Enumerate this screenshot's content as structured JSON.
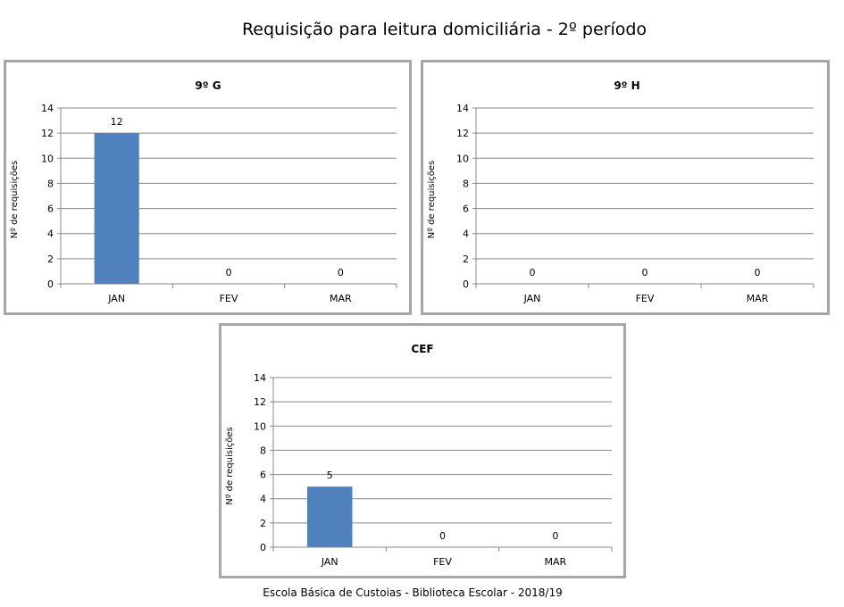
{
  "title": "Requisição para leitura domiciliária - 2º período",
  "footer": "Escola Básica de Custoias - Biblioteca Escolar  - 2018/19",
  "colors": {
    "bar": "#4f81bd",
    "grid": "#888888",
    "panel_border": "#a6a6a6"
  },
  "chart_data": [
    {
      "type": "bar",
      "title": "9º G",
      "ylabel": "Nº de requisições",
      "xlabel": "",
      "categories": [
        "JAN",
        "FEV",
        "MAR"
      ],
      "values": [
        12,
        0,
        0
      ],
      "ylim": [
        0,
        14
      ],
      "yticks": [
        0,
        2,
        4,
        6,
        8,
        10,
        12,
        14
      ],
      "grid": true,
      "legend": "none"
    },
    {
      "type": "bar",
      "title": "9º H",
      "ylabel": "Nº de requisições",
      "xlabel": "",
      "categories": [
        "JAN",
        "FEV",
        "MAR"
      ],
      "values": [
        0,
        0,
        0
      ],
      "ylim": [
        0,
        14
      ],
      "yticks": [
        0,
        2,
        4,
        6,
        8,
        10,
        12,
        14
      ],
      "grid": true,
      "legend": "none"
    },
    {
      "type": "bar",
      "title": "CEF",
      "ylabel": "Nº de requisições",
      "xlabel": "",
      "categories": [
        "JAN",
        "FEV",
        "MAR"
      ],
      "values": [
        5,
        0,
        0
      ],
      "ylim": [
        0,
        14
      ],
      "yticks": [
        0,
        2,
        4,
        6,
        8,
        10,
        12,
        14
      ],
      "grid": true,
      "legend": "none"
    }
  ]
}
